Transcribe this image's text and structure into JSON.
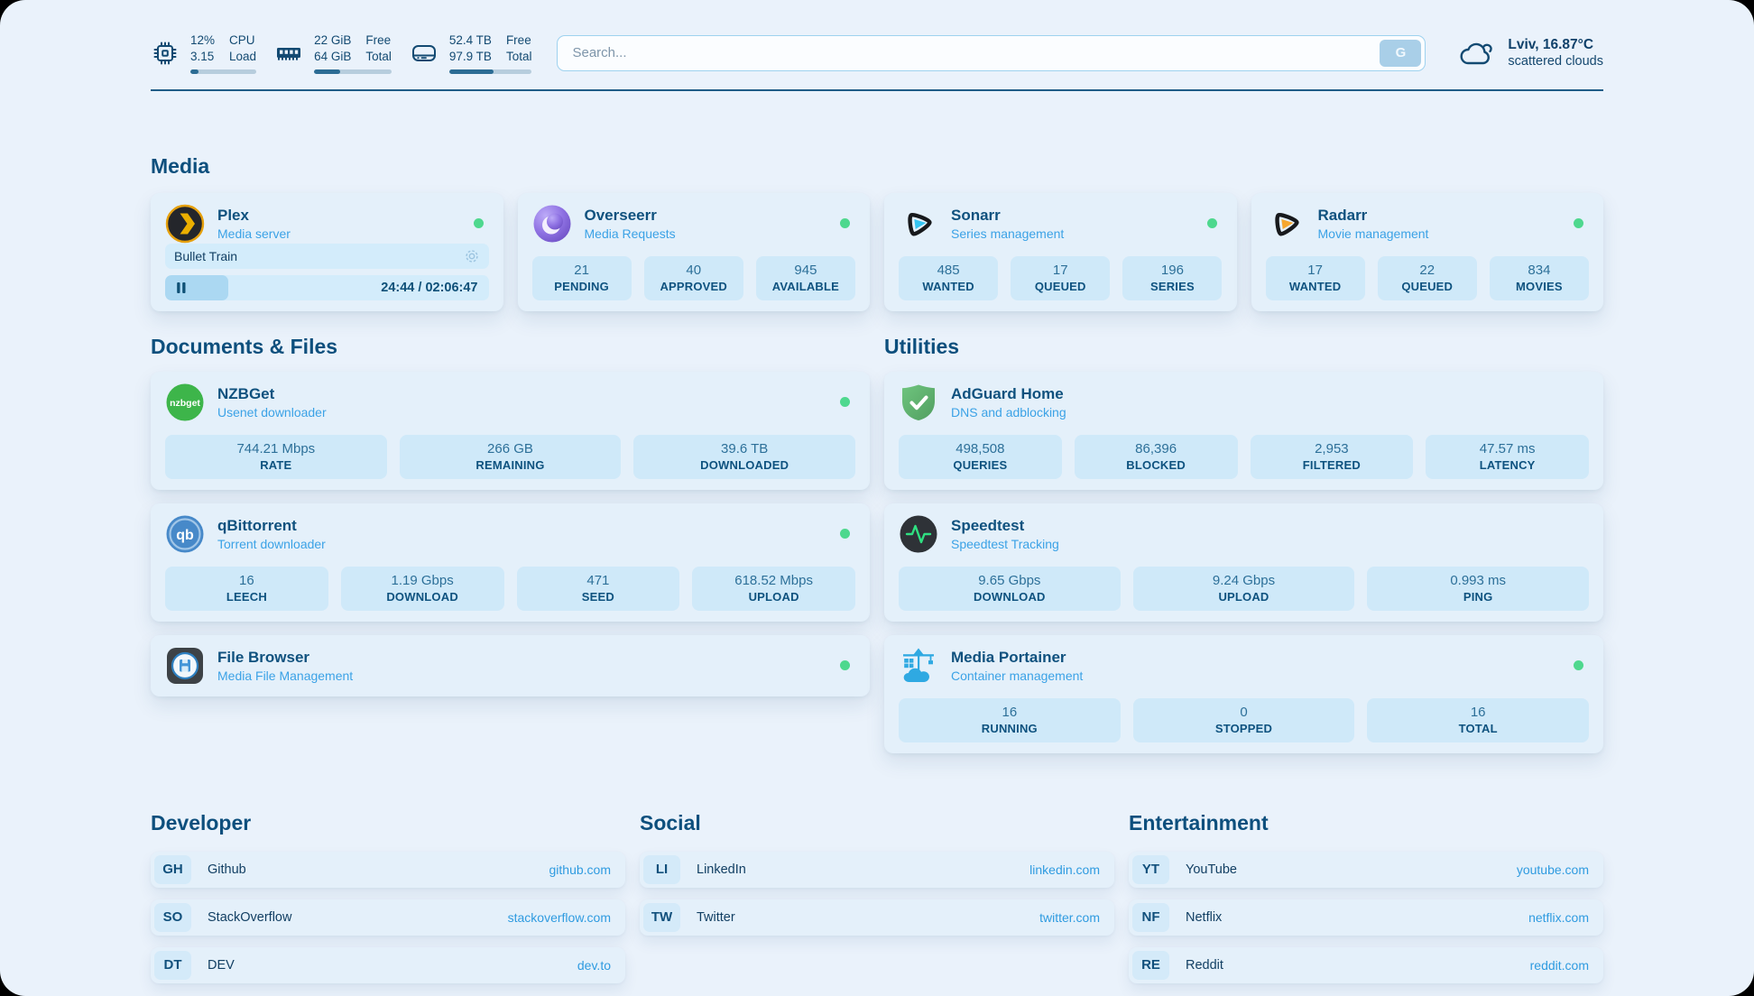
{
  "colors": {
    "accent_text": "#0d4f7d",
    "subtitle_text": "#3ba2e6",
    "link_text": "#2f9be0",
    "status_online": "#4ed88e",
    "stat_box_bg": "#cfe9f9",
    "page_bg": "#eaf2fb"
  },
  "topbar": {
    "resources": [
      {
        "icon": "cpu-icon",
        "values": [
          "12%",
          "3.15"
        ],
        "labels": [
          "CPU",
          "Load"
        ],
        "percent": 12
      },
      {
        "icon": "memory-icon",
        "values": [
          "22 GiB",
          "64 GiB"
        ],
        "labels": [
          "Free",
          "Total"
        ],
        "percent": 34
      },
      {
        "icon": "disk-icon",
        "values": [
          "52.4 TB",
          "97.9 TB"
        ],
        "labels": [
          "Free",
          "Total"
        ],
        "percent": 54
      }
    ],
    "search": {
      "placeholder": "Search...",
      "button_label": "G"
    },
    "weather": {
      "location": "Lviv, 16.87°C",
      "condition": "scattered clouds"
    }
  },
  "media": {
    "heading": "Media",
    "apps": [
      {
        "name": "Plex",
        "subtitle": "Media server",
        "online": true,
        "player": {
          "title": "Bullet Train",
          "time": "24:44 / 02:06:47",
          "progress_percent": 19.5
        }
      },
      {
        "name": "Overseerr",
        "subtitle": "Media Requests",
        "online": true,
        "stats": [
          {
            "value": "21",
            "label": "PENDING"
          },
          {
            "value": "40",
            "label": "APPROVED"
          },
          {
            "value": "945",
            "label": "AVAILABLE"
          }
        ]
      },
      {
        "name": "Sonarr",
        "subtitle": "Series management",
        "online": true,
        "stats": [
          {
            "value": "485",
            "label": "WANTED"
          },
          {
            "value": "17",
            "label": "QUEUED"
          },
          {
            "value": "196",
            "label": "SERIES"
          }
        ]
      },
      {
        "name": "Radarr",
        "subtitle": "Movie management",
        "online": true,
        "stats": [
          {
            "value": "17",
            "label": "WANTED"
          },
          {
            "value": "22",
            "label": "QUEUED"
          },
          {
            "value": "834",
            "label": "MOVIES"
          }
        ]
      }
    ]
  },
  "documents": {
    "heading": "Documents & Files",
    "apps": [
      {
        "name": "NZBGet",
        "subtitle": "Usenet downloader",
        "online": true,
        "stats": [
          {
            "value": "744.21 Mbps",
            "label": "RATE"
          },
          {
            "value": "266 GB",
            "label": "REMAINING"
          },
          {
            "value": "39.6 TB",
            "label": "DOWNLOADED"
          }
        ]
      },
      {
        "name": "qBittorrent",
        "subtitle": "Torrent downloader",
        "online": true,
        "stats": [
          {
            "value": "16",
            "label": "LEECH"
          },
          {
            "value": "1.19 Gbps",
            "label": "DOWNLOAD"
          },
          {
            "value": "471",
            "label": "SEED"
          },
          {
            "value": "618.52 Mbps",
            "label": "UPLOAD"
          }
        ]
      },
      {
        "name": "File Browser",
        "subtitle": "Media File Management",
        "online": true
      }
    ]
  },
  "utilities": {
    "heading": "Utilities",
    "apps": [
      {
        "name": "AdGuard Home",
        "subtitle": "DNS and adblocking",
        "stats": [
          {
            "value": "498,508",
            "label": "QUERIES"
          },
          {
            "value": "86,396",
            "label": "BLOCKED"
          },
          {
            "value": "2,953",
            "label": "FILTERED"
          },
          {
            "value": "47.57 ms",
            "label": "LATENCY"
          }
        ]
      },
      {
        "name": "Speedtest",
        "subtitle": "Speedtest Tracking",
        "stats": [
          {
            "value": "9.65 Gbps",
            "label": "DOWNLOAD"
          },
          {
            "value": "9.24 Gbps",
            "label": "UPLOAD"
          },
          {
            "value": "0.993 ms",
            "label": "PING"
          }
        ]
      },
      {
        "name": "Media Portainer",
        "subtitle": "Container management",
        "online": true,
        "stats": [
          {
            "value": "16",
            "label": "RUNNING"
          },
          {
            "value": "0",
            "label": "STOPPED"
          },
          {
            "value": "16",
            "label": "TOTAL"
          }
        ]
      }
    ]
  },
  "bookmarks": {
    "groups": [
      {
        "heading": "Developer",
        "items": [
          {
            "abbr": "GH",
            "name": "Github",
            "url": "github.com"
          },
          {
            "abbr": "SO",
            "name": "StackOverflow",
            "url": "stackoverflow.com"
          },
          {
            "abbr": "DT",
            "name": "DEV",
            "url": "dev.to"
          }
        ]
      },
      {
        "heading": "Social",
        "items": [
          {
            "abbr": "LI",
            "name": "LinkedIn",
            "url": "linkedin.com"
          },
          {
            "abbr": "TW",
            "name": "Twitter",
            "url": "twitter.com"
          }
        ]
      },
      {
        "heading": "Entertainment",
        "items": [
          {
            "abbr": "YT",
            "name": "YouTube",
            "url": "youtube.com"
          },
          {
            "abbr": "NF",
            "name": "Netflix",
            "url": "netflix.com"
          },
          {
            "abbr": "RE",
            "name": "Reddit",
            "url": "reddit.com"
          }
        ]
      }
    ]
  }
}
